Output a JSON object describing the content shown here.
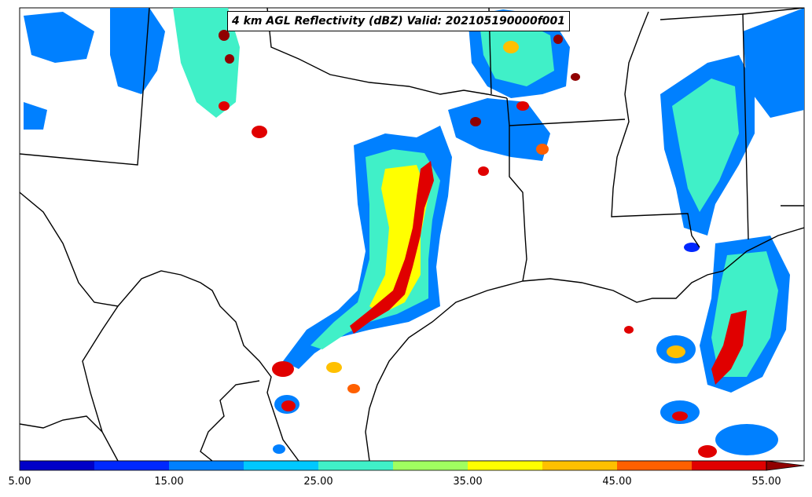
{
  "title": "4 km AGL Reflectivity (dBZ) Valid: 202105190000f001",
  "colorbar": {
    "min": 5.0,
    "max": 55.0,
    "extend": "max",
    "bounds": [
      5,
      10,
      15,
      20,
      25,
      30,
      35,
      40,
      45,
      50,
      55
    ],
    "colors": [
      "#0000c8",
      "#0028ff",
      "#0080ff",
      "#00c8ff",
      "#40f0c8",
      "#a0ff60",
      "#ffff00",
      "#ffc000",
      "#ff6000",
      "#e00000",
      "#900000"
    ],
    "tick_labels": [
      "5.00",
      "15.00",
      "25.00",
      "35.00",
      "45.00",
      "55.00"
    ],
    "tick_values": [
      5,
      15,
      25,
      35,
      45,
      55
    ]
  },
  "map": {
    "region": "Texas and Gulf Coast",
    "outline_color": "#000000",
    "background": "#ffffff"
  }
}
